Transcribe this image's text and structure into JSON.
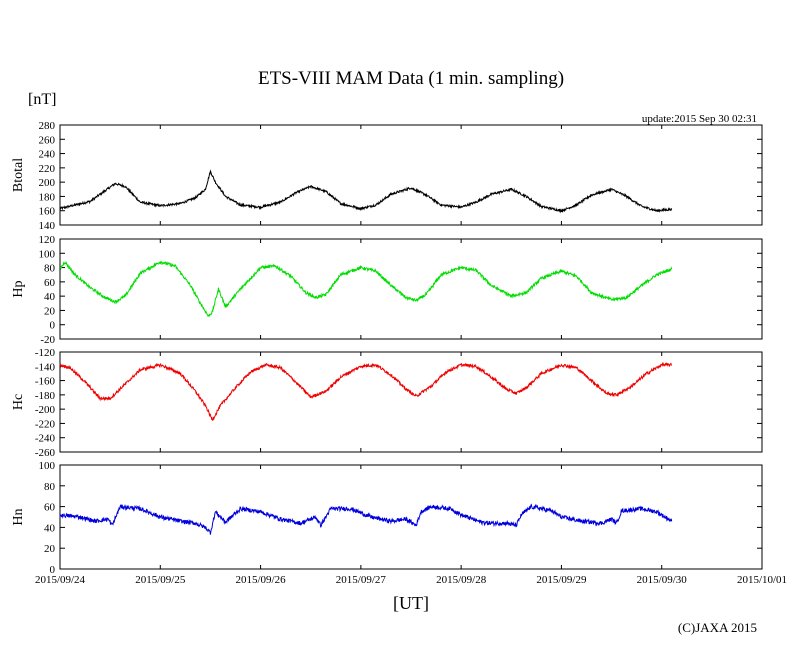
{
  "chart_data": {
    "type": "line",
    "title": "ETS-VIII MAM Data (1 min. sampling)",
    "unit_label": "[nT]",
    "update_text": "update:2015 Sep 30 02:31",
    "xlabel": "[UT]",
    "credit": "(C)JAXA 2015",
    "x_ticks": [
      "2015/09/24",
      "2015/09/25",
      "2015/09/26",
      "2015/09/27",
      "2015/09/28",
      "2015/09/29",
      "2015/09/30",
      "2015/10/01"
    ],
    "x_range_days": [
      0,
      7
    ],
    "data_end_day": 6.1,
    "grid": false,
    "panels": [
      {
        "name": "Btotal",
        "color": "#000000",
        "ylim": [
          140,
          280
        ],
        "yticks": [
          140,
          160,
          180,
          200,
          220,
          240,
          260,
          280
        ],
        "noise": 1.5,
        "x": [
          0,
          0.15,
          0.3,
          0.45,
          0.55,
          0.65,
          0.8,
          1.0,
          1.2,
          1.35,
          1.45,
          1.5,
          1.55,
          1.65,
          1.8,
          2.0,
          2.2,
          2.35,
          2.5,
          2.65,
          2.8,
          3.0,
          3.15,
          3.3,
          3.5,
          3.65,
          3.8,
          4.0,
          4.15,
          4.3,
          4.5,
          4.65,
          4.8,
          5.0,
          5.15,
          5.3,
          5.5,
          5.65,
          5.8,
          5.95,
          6.1
        ],
        "values": [
          163,
          168,
          173,
          188,
          198,
          194,
          172,
          167,
          170,
          178,
          190,
          215,
          200,
          180,
          168,
          165,
          172,
          185,
          194,
          187,
          170,
          163,
          168,
          183,
          192,
          182,
          168,
          165,
          172,
          183,
          190,
          180,
          166,
          160,
          168,
          182,
          190,
          180,
          166,
          160,
          162
        ]
      },
      {
        "name": "Hp",
        "color": "#00dd00",
        "ylim": [
          -20,
          120
        ],
        "yticks": [
          -20,
          0,
          20,
          40,
          60,
          80,
          100,
          120
        ],
        "noise": 2,
        "x": [
          0,
          0.05,
          0.15,
          0.3,
          0.45,
          0.55,
          0.65,
          0.8,
          1.0,
          1.15,
          1.3,
          1.4,
          1.48,
          1.52,
          1.58,
          1.65,
          1.8,
          2.0,
          2.15,
          2.3,
          2.45,
          2.55,
          2.65,
          2.8,
          3.0,
          3.15,
          3.3,
          3.45,
          3.55,
          3.65,
          3.8,
          4.0,
          4.15,
          4.3,
          4.5,
          4.65,
          4.8,
          5.0,
          5.15,
          5.3,
          5.5,
          5.65,
          5.8,
          5.95,
          6.1
        ],
        "values": [
          78,
          88,
          70,
          52,
          38,
          32,
          40,
          72,
          88,
          82,
          55,
          30,
          12,
          18,
          50,
          25,
          50,
          80,
          82,
          68,
          45,
          38,
          42,
          70,
          80,
          75,
          55,
          38,
          34,
          42,
          70,
          80,
          76,
          55,
          40,
          45,
          65,
          75,
          68,
          45,
          35,
          38,
          55,
          70,
          78
        ]
      },
      {
        "name": "Hc",
        "color": "#ee0000",
        "ylim": [
          -260,
          -120
        ],
        "yticks": [
          -260,
          -240,
          -220,
          -200,
          -180,
          -160,
          -140,
          -120
        ],
        "noise": 2,
        "x": [
          0,
          0.1,
          0.25,
          0.4,
          0.5,
          0.65,
          0.8,
          1.0,
          1.2,
          1.35,
          1.45,
          1.52,
          1.6,
          1.75,
          1.9,
          2.05,
          2.2,
          2.35,
          2.5,
          2.65,
          2.8,
          3.0,
          3.15,
          3.3,
          3.45,
          3.55,
          3.7,
          3.85,
          4.0,
          4.15,
          4.3,
          4.45,
          4.55,
          4.65,
          4.8,
          5.0,
          5.15,
          5.3,
          5.45,
          5.55,
          5.7,
          5.85,
          6.0,
          6.1
        ],
        "values": [
          -138,
          -142,
          -162,
          -185,
          -185,
          -165,
          -145,
          -138,
          -150,
          -175,
          -195,
          -215,
          -195,
          -170,
          -148,
          -138,
          -142,
          -162,
          -183,
          -175,
          -155,
          -140,
          -138,
          -152,
          -172,
          -182,
          -168,
          -148,
          -138,
          -140,
          -155,
          -172,
          -178,
          -170,
          -150,
          -138,
          -142,
          -160,
          -178,
          -180,
          -168,
          -150,
          -138,
          -138
        ]
      },
      {
        "name": "Hn",
        "color": "#0000dd",
        "ylim": [
          0,
          100
        ],
        "yticks": [
          0,
          20,
          40,
          60,
          80,
          100
        ],
        "noise": 2,
        "x": [
          0,
          0.2,
          0.35,
          0.48,
          0.52,
          0.6,
          0.8,
          1.0,
          1.2,
          1.35,
          1.45,
          1.5,
          1.55,
          1.65,
          1.8,
          2.0,
          2.2,
          2.4,
          2.55,
          2.6,
          2.7,
          2.9,
          3.1,
          3.3,
          3.45,
          3.55,
          3.6,
          3.7,
          3.9,
          4.0,
          4.2,
          4.3,
          4.45,
          4.55,
          4.6,
          4.7,
          4.9,
          5.0,
          5.2,
          5.4,
          5.5,
          5.55,
          5.6,
          5.8,
          5.95,
          6.1
        ],
        "values": [
          52,
          50,
          46,
          48,
          42,
          60,
          58,
          50,
          46,
          44,
          40,
          35,
          55,
          45,
          58,
          55,
          48,
          44,
          50,
          42,
          58,
          58,
          50,
          46,
          48,
          42,
          55,
          60,
          58,
          52,
          45,
          44,
          44,
          42,
          52,
          60,
          56,
          50,
          46,
          44,
          48,
          44,
          56,
          58,
          55,
          46
        ]
      }
    ]
  }
}
